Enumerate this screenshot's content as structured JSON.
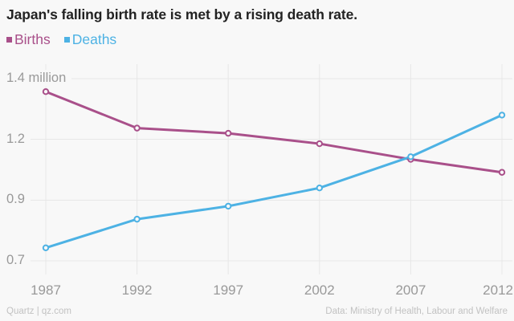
{
  "title": "Japan's falling birth rate is met by a rising death rate.",
  "legend": [
    {
      "label": "Births",
      "color": "#a9508a"
    },
    {
      "label": "Deaths",
      "color": "#4db2e4"
    }
  ],
  "chart_data": {
    "type": "line",
    "title": "Japan's falling birth rate is met by a rising death rate.",
    "x": [
      1987,
      1992,
      1997,
      2002,
      2007,
      2012
    ],
    "x_tick_labels": [
      "1987",
      "1992",
      "1997",
      "2002",
      "2007",
      "2012"
    ],
    "series": [
      {
        "name": "Births",
        "color": "#a9508a",
        "values": [
          1.35,
          1.21,
          1.19,
          1.15,
          1.09,
          1.04
        ]
      },
      {
        "name": "Deaths",
        "color": "#4db2e4",
        "values": [
          0.75,
          0.86,
          0.91,
          0.98,
          1.1,
          1.26
        ]
      }
    ],
    "unit": "million people per year",
    "ylim": [
      0.7,
      1.4
    ],
    "y_ticks": [
      {
        "value": 1.4,
        "label": "1.4 million"
      },
      {
        "value": 1.167,
        "label": "1.2"
      },
      {
        "value": 0.933,
        "label": "0.9"
      },
      {
        "value": 0.7,
        "label": "0.7"
      }
    ],
    "grid": true,
    "legend_position": "top-left"
  },
  "footer": {
    "left": "Quartz | qz.com",
    "right": "Data: Ministry of Health, Labour and Welfare"
  },
  "colors": {
    "background": "#f8f8f8",
    "grid": "#e7e7e7",
    "axis_text": "#999999",
    "title_text": "#222222",
    "footer_text": "#c2c2c2",
    "births": "#a9508a",
    "deaths": "#4db2e4"
  }
}
